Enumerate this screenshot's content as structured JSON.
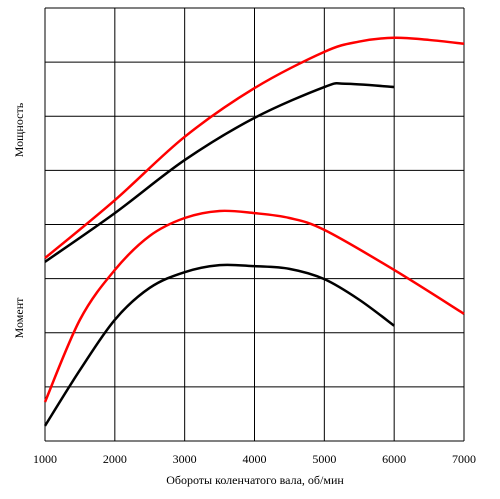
{
  "chart_data": {
    "type": "line",
    "xlabel": "Обороты коленчатого вала, об/мин",
    "annotations": [
      "Мощность",
      "Момент"
    ],
    "xlim": [
      1000,
      7000
    ],
    "xticks": [
      1000,
      2000,
      3000,
      4000,
      5000,
      6000,
      7000
    ],
    "ylim": [
      0,
      8
    ],
    "yticks": [
      0,
      1,
      2,
      3,
      4,
      5,
      6,
      7,
      8
    ],
    "ytick_labels": false,
    "grid": true,
    "series": [
      {
        "color": "#ff0000",
        "x": [
          1000,
          2000,
          3000,
          4000,
          5000,
          5500,
          6000,
          6500,
          7000
        ],
        "values": [
          3.38,
          4.45,
          5.62,
          6.52,
          7.19,
          7.38,
          7.45,
          7.41,
          7.34
        ]
      },
      {
        "color": "#000000",
        "x": [
          1000,
          2000,
          3000,
          4000,
          5000,
          5300,
          6000
        ],
        "values": [
          3.31,
          4.21,
          5.19,
          5.97,
          6.54,
          6.6,
          6.54
        ]
      },
      {
        "color": "#ff0000",
        "x": [
          1000,
          1500,
          2000,
          2500,
          3000,
          3500,
          4000,
          4500,
          5000,
          6000,
          7000
        ],
        "values": [
          0.72,
          2.24,
          3.16,
          3.79,
          4.12,
          4.25,
          4.21,
          4.12,
          3.9,
          3.16,
          2.35
        ]
      },
      {
        "color": "#000000",
        "x": [
          1000,
          1500,
          2000,
          2500,
          3000,
          3500,
          4000,
          4500,
          5000,
          5500,
          6000
        ],
        "values": [
          0.28,
          1.31,
          2.24,
          2.83,
          3.12,
          3.25,
          3.23,
          3.18,
          2.99,
          2.61,
          2.13
        ]
      }
    ]
  }
}
